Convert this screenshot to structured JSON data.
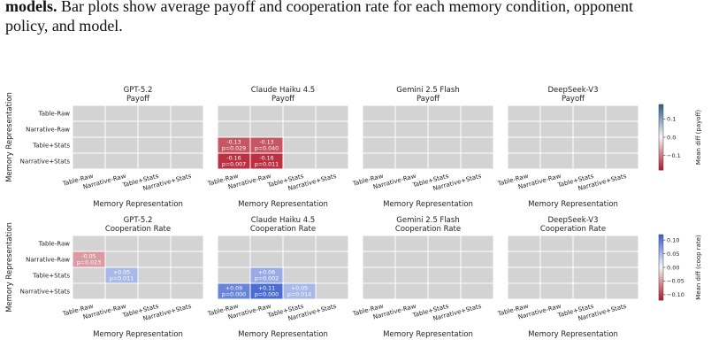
{
  "caption": {
    "lead": "models.",
    "rest": " Bar plots show average payoff and cooperation rate for each memory condition, opponent",
    "line2": "policy, and model."
  },
  "chart_data": [
    {
      "type": "heatmap",
      "metric": "Payoff",
      "ylabel": "Memory Representation",
      "xlabel": "Memory Representation",
      "rows": [
        "Table-Raw",
        "Narrative-Raw",
        "Table+Stats",
        "Narrative+Stats"
      ],
      "cols": [
        "Table-Raw",
        "Narrative-Raw",
        "Table+Stats",
        "Narrative+Stats"
      ],
      "colorbar": {
        "label": "Mean diff (payoff)",
        "range": [
          -0.18,
          0.18
        ],
        "ticks": [
          0.1,
          0.0,
          -0.1
        ],
        "tick_labels": [
          "0.1",
          "0.0",
          "−0.1"
        ],
        "low_color": "#b2182b",
        "high_color": "#2c5f8a",
        "mid_color": "#f7f7f7"
      },
      "panels": [
        {
          "model": "GPT-5.2",
          "cells": []
        },
        {
          "model": "Claude Haiku 4.5",
          "cells": [
            {
              "row": 2,
              "col": 0,
              "value": -0.13,
              "text": "-0.13",
              "p": "p=0.029"
            },
            {
              "row": 2,
              "col": 1,
              "value": -0.13,
              "text": "-0.13",
              "p": "p=0.040"
            },
            {
              "row": 3,
              "col": 0,
              "value": -0.16,
              "text": "-0.16",
              "p": "p=0.007"
            },
            {
              "row": 3,
              "col": 1,
              "value": -0.16,
              "text": "-0.16",
              "p": "p=0.011"
            }
          ]
        },
        {
          "model": "Gemini 2.5 Flash",
          "cells": []
        },
        {
          "model": "DeepSeek-V3",
          "cells": []
        }
      ]
    },
    {
      "type": "heatmap",
      "metric": "Cooperation Rate",
      "ylabel": "Memory Representation",
      "xlabel": "Memory Representation",
      "rows": [
        "Table-Raw",
        "Narrative-Raw",
        "Table+Stats",
        "Narrative+Stats"
      ],
      "cols": [
        "Table-Raw",
        "Narrative-Raw",
        "Table+Stats",
        "Narrative+Stats"
      ],
      "colorbar": {
        "label": "Mean diff (coop rate)",
        "range": [
          -0.12,
          0.12
        ],
        "ticks": [
          0.1,
          0.05,
          0.0,
          -0.05,
          -0.1
        ],
        "tick_labels": [
          "0.10",
          "0.05",
          "0.00",
          "−0.05",
          "−0.10"
        ],
        "low_color": "#b2182b",
        "high_color": "#3a5fd0",
        "mid_color": "#f7f7f7"
      },
      "panels": [
        {
          "model": "GPT-5.2",
          "cells": [
            {
              "row": 1,
              "col": 0,
              "value": -0.05,
              "text": "-0.05",
              "p": "p=0.023"
            },
            {
              "row": 2,
              "col": 1,
              "value": 0.05,
              "text": "+0.05",
              "p": "p=0.011"
            }
          ]
        },
        {
          "model": "Claude Haiku 4.5",
          "cells": [
            {
              "row": 2,
              "col": 1,
              "value": 0.06,
              "text": "+0.06",
              "p": "p=0.002"
            },
            {
              "row": 3,
              "col": 0,
              "value": 0.09,
              "text": "+0.09",
              "p": "p=0.000"
            },
            {
              "row": 3,
              "col": 1,
              "value": 0.11,
              "text": "+0.11",
              "p": "p=0.000"
            },
            {
              "row": 3,
              "col": 2,
              "value": 0.05,
              "text": "+0.05",
              "p": "p=0.014"
            }
          ]
        },
        {
          "model": "Gemini 2.5 Flash",
          "cells": []
        },
        {
          "model": "DeepSeek-V3",
          "cells": []
        }
      ]
    }
  ]
}
